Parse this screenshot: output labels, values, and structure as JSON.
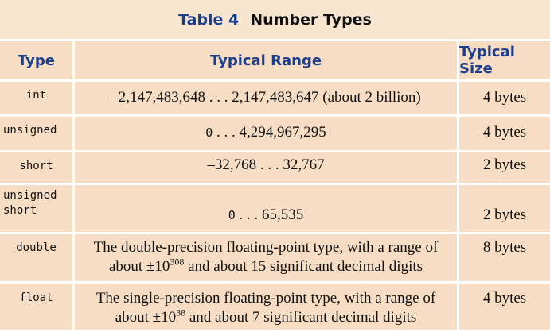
{
  "caption": {
    "number": "Table 4",
    "title": "Number Types"
  },
  "headers": {
    "type": "Type",
    "range": "Typical Range",
    "size": "Typical Size"
  },
  "rows": [
    {
      "type": "int",
      "range": "–2,147,483,648 . . . 2,147,483,647 (about 2 billion)",
      "size": "4 bytes"
    },
    {
      "type": "unsigned",
      "range_start": "0",
      "range_rest": ". . . 4,294,967,295",
      "size": "4 bytes"
    },
    {
      "type": "short",
      "range": "–32,768 . . . 32,767",
      "size": "2 bytes"
    },
    {
      "type": "unsigned\nshort",
      "range_start": "0",
      "range_rest": ". . . 65,535",
      "size": "2 bytes"
    },
    {
      "type": "double",
      "line1": "The double-precision floating-point type, with a range of",
      "line2_a": "about ±10",
      "exp": "308",
      "line2_b": " and about 15 significant decimal digits",
      "size": "8 bytes"
    },
    {
      "type": "float",
      "line1": "The single-precision floating-point type, with a range of",
      "line2_a": "about ±10",
      "exp": "38",
      "line2_b": " and about 7 significant decimal digits",
      "size": "4 bytes"
    }
  ]
}
